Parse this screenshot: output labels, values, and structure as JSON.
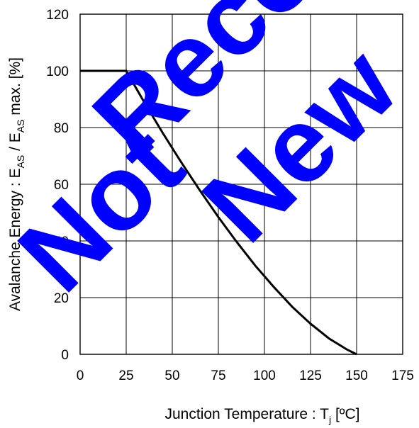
{
  "chart_data": {
    "type": "line",
    "xlabel": {
      "main": "Junction Temperature : T",
      "sub": "j",
      "unit": " [ºC]"
    },
    "ylabel": {
      "a": "Avalanche Energy : E",
      "sub1": "AS",
      "b": " / E",
      "sub2": "AS",
      "c": " max. [%]"
    },
    "x_ticks": [
      "0",
      "25",
      "50",
      "75",
      "100",
      "125",
      "150",
      "175"
    ],
    "y_ticks": [
      "0",
      "20",
      "40",
      "60",
      "80",
      "100",
      "120"
    ],
    "xlim": [
      0,
      175
    ],
    "ylim": [
      0,
      120
    ],
    "grid": true,
    "series": [
      {
        "x": [
          0,
          25,
          35,
          45,
          55,
          65,
          75,
          85,
          95,
          105,
          115,
          125,
          135,
          145,
          150
        ],
        "y": [
          100,
          100,
          88.7,
          77.9,
          67.6,
          57.8,
          48.4,
          39.6,
          31.3,
          23.8,
          16.8,
          10.8,
          5.6,
          1.6,
          0
        ]
      }
    ],
    "line_color": "#000000"
  },
  "watermark": {
    "text": "Not Recommended for New Design",
    "color": "#0000ff"
  }
}
